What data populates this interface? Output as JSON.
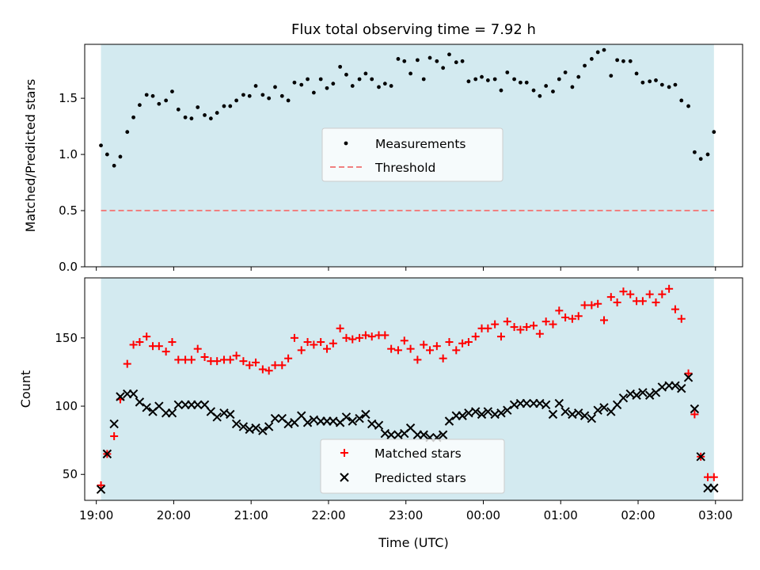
{
  "chart_data": [
    {
      "type": "scatter",
      "title": "Flux total observing time = 7.92 h",
      "xlabel": "",
      "ylabel": "Matched/Predicted stars",
      "xlim": [
        18.85,
        27.35
      ],
      "ylim": [
        0.0,
        1.98
      ],
      "yticks": [
        0.0,
        0.5,
        1.0,
        1.5
      ],
      "ytick_labels": [
        "0.0",
        "0.5",
        "1.0",
        "1.5"
      ],
      "shaded_span": [
        19.06,
        26.98
      ],
      "shaded_color": "#d3eaf0",
      "legend": {
        "position": "center",
        "entries": [
          "Measurements",
          "Threshold"
        ]
      },
      "threshold": {
        "name": "Threshold",
        "y": 0.5,
        "color": "#f08080",
        "style": "dashed"
      },
      "series": [
        {
          "name": "Measurements",
          "color": "#000000",
          "marker": "dot",
          "x": [
            19.06,
            19.14,
            19.23,
            19.31,
            19.4,
            19.48,
            19.56,
            19.65,
            19.73,
            19.81,
            19.9,
            19.98,
            20.06,
            20.15,
            20.23,
            20.31,
            20.4,
            20.48,
            20.56,
            20.65,
            20.73,
            20.81,
            20.9,
            20.98,
            21.06,
            21.15,
            21.23,
            21.31,
            21.4,
            21.48,
            21.56,
            21.65,
            21.73,
            21.81,
            21.9,
            21.98,
            22.06,
            22.15,
            22.23,
            22.31,
            22.4,
            22.48,
            22.56,
            22.65,
            22.73,
            22.81,
            22.9,
            22.98,
            23.06,
            23.15,
            23.23,
            23.31,
            23.4,
            23.48,
            23.56,
            23.65,
            23.73,
            23.81,
            23.9,
            23.98,
            24.06,
            24.15,
            24.23,
            24.31,
            24.4,
            24.48,
            24.56,
            24.65,
            24.73,
            24.81,
            24.9,
            24.98,
            25.06,
            25.15,
            25.23,
            25.31,
            25.4,
            25.48,
            25.56,
            25.65,
            25.73,
            25.81,
            25.9,
            25.98,
            26.06,
            26.15,
            26.23,
            26.31,
            26.4,
            26.48,
            26.56,
            26.65,
            26.73,
            26.81,
            26.9,
            26.98
          ],
          "y": [
            1.08,
            1.0,
            0.9,
            0.98,
            1.2,
            1.33,
            1.44,
            1.53,
            1.52,
            1.45,
            1.48,
            1.56,
            1.4,
            1.33,
            1.32,
            1.42,
            1.35,
            1.32,
            1.37,
            1.43,
            1.43,
            1.48,
            1.53,
            1.52,
            1.61,
            1.53,
            1.5,
            1.6,
            1.52,
            1.48,
            1.64,
            1.62,
            1.67,
            1.55,
            1.67,
            1.59,
            1.63,
            1.78,
            1.71,
            1.61,
            1.67,
            1.72,
            1.67,
            1.6,
            1.63,
            1.61,
            1.85,
            1.83,
            1.72,
            1.84,
            1.67,
            1.86,
            1.83,
            1.77,
            1.89,
            1.82,
            1.83,
            1.65,
            1.67,
            1.69,
            1.66,
            1.67,
            1.57,
            1.73,
            1.67,
            1.64,
            1.64,
            1.57,
            1.52,
            1.61,
            1.56,
            1.67,
            1.73,
            1.6,
            1.69,
            1.79,
            1.85,
            1.91,
            1.93,
            1.7,
            1.84,
            1.83,
            1.83,
            1.72,
            1.64,
            1.65,
            1.66,
            1.62,
            1.6,
            1.62,
            1.48,
            1.43,
            1.02,
            0.96,
            1.0,
            1.2
          ]
        }
      ]
    },
    {
      "type": "scatter",
      "title": "",
      "xlabel": "Time (UTC)",
      "ylabel": "Count",
      "xlim": [
        18.85,
        27.35
      ],
      "ylim": [
        31,
        194
      ],
      "yticks": [
        50,
        100,
        150
      ],
      "ytick_labels": [
        "50",
        "100",
        "150"
      ],
      "xticks": [
        19,
        20,
        21,
        22,
        23,
        24,
        25,
        26,
        27
      ],
      "xtick_labels": [
        "19:00",
        "20:00",
        "21:00",
        "22:00",
        "23:00",
        "00:00",
        "01:00",
        "02:00",
        "03:00"
      ],
      "shaded_span": [
        19.06,
        26.98
      ],
      "shaded_color": "#d3eaf0",
      "legend": {
        "position": "lower-center",
        "entries": [
          "Matched stars",
          "Predicted stars"
        ]
      },
      "series": [
        {
          "name": "Matched stars",
          "color": "#ff0000",
          "marker": "plus",
          "x": [
            19.06,
            19.14,
            19.23,
            19.31,
            19.4,
            19.48,
            19.56,
            19.65,
            19.73,
            19.81,
            19.9,
            19.98,
            20.06,
            20.15,
            20.23,
            20.31,
            20.4,
            20.48,
            20.56,
            20.65,
            20.73,
            20.81,
            20.9,
            20.98,
            21.06,
            21.15,
            21.23,
            21.31,
            21.4,
            21.48,
            21.56,
            21.65,
            21.73,
            21.81,
            21.9,
            21.98,
            22.06,
            22.15,
            22.23,
            22.31,
            22.4,
            22.48,
            22.56,
            22.65,
            22.73,
            22.81,
            22.9,
            22.98,
            23.06,
            23.15,
            23.23,
            23.31,
            23.4,
            23.48,
            23.56,
            23.65,
            23.73,
            23.81,
            23.9,
            23.98,
            24.06,
            24.15,
            24.23,
            24.31,
            24.4,
            24.48,
            24.56,
            24.65,
            24.73,
            24.81,
            24.9,
            24.98,
            25.06,
            25.15,
            25.23,
            25.31,
            25.4,
            25.48,
            25.56,
            25.65,
            25.73,
            25.81,
            25.9,
            25.98,
            26.06,
            26.15,
            26.23,
            26.31,
            26.4,
            26.48,
            26.56,
            26.65,
            26.73,
            26.81,
            26.9,
            26.98
          ],
          "y": [
            42,
            65,
            78,
            105,
            131,
            145,
            147,
            151,
            144,
            144,
            140,
            147,
            134,
            134,
            134,
            142,
            136,
            133,
            133,
            134,
            134,
            137,
            133,
            130,
            132,
            127,
            126,
            130,
            130,
            135,
            150,
            141,
            147,
            145,
            147,
            142,
            146,
            157,
            150,
            149,
            150,
            152,
            151,
            152,
            152,
            142,
            141,
            148,
            142,
            134,
            145,
            141,
            144,
            135,
            147,
            141,
            146,
            147,
            151,
            157,
            157,
            160,
            151,
            162,
            158,
            156,
            158,
            159,
            153,
            162,
            160,
            170,
            165,
            164,
            166,
            174,
            174,
            175,
            163,
            180,
            176,
            184,
            182,
            177,
            177,
            182,
            176,
            182,
            186,
            171,
            164,
            124,
            94,
            63,
            48,
            48
          ]
        },
        {
          "name": "Predicted stars",
          "color": "#000000",
          "marker": "x",
          "x": [
            19.06,
            19.14,
            19.23,
            19.31,
            19.4,
            19.48,
            19.56,
            19.65,
            19.73,
            19.81,
            19.9,
            19.98,
            20.06,
            20.15,
            20.23,
            20.31,
            20.4,
            20.48,
            20.56,
            20.65,
            20.73,
            20.81,
            20.9,
            20.98,
            21.06,
            21.15,
            21.23,
            21.31,
            21.4,
            21.48,
            21.56,
            21.65,
            21.73,
            21.81,
            21.9,
            21.98,
            22.06,
            22.15,
            22.23,
            22.31,
            22.4,
            22.48,
            22.56,
            22.65,
            22.73,
            22.81,
            22.9,
            22.98,
            23.06,
            23.15,
            23.23,
            23.31,
            23.4,
            23.48,
            23.56,
            23.65,
            23.73,
            23.81,
            23.9,
            23.98,
            24.06,
            24.15,
            24.23,
            24.31,
            24.4,
            24.48,
            24.56,
            24.65,
            24.73,
            24.81,
            24.9,
            24.98,
            25.06,
            25.15,
            25.23,
            25.31,
            25.4,
            25.48,
            25.56,
            25.65,
            25.73,
            25.81,
            25.9,
            25.98,
            26.06,
            26.15,
            26.23,
            26.31,
            26.4,
            26.48,
            26.56,
            26.65,
            26.73,
            26.81,
            26.9,
            26.98
          ],
          "y": [
            39,
            65,
            87,
            107,
            109,
            109,
            103,
            99,
            96,
            100,
            95,
            95,
            101,
            101,
            101,
            101,
            101,
            96,
            92,
            95,
            94,
            87,
            85,
            83,
            84,
            82,
            85,
            91,
            91,
            87,
            88,
            93,
            88,
            90,
            89,
            89,
            89,
            88,
            92,
            89,
            91,
            94,
            87,
            86,
            80,
            79,
            79,
            80,
            84,
            79,
            79,
            77,
            77,
            79,
            89,
            93,
            93,
            95,
            96,
            94,
            96,
            94,
            95,
            97,
            101,
            102,
            102,
            102,
            102,
            101,
            94,
            102,
            96,
            94,
            95,
            93,
            91,
            97,
            99,
            96,
            101,
            106,
            109,
            108,
            110,
            108,
            110,
            114,
            115,
            115,
            113,
            121,
            98,
            63,
            40,
            40
          ]
        }
      ]
    }
  ]
}
